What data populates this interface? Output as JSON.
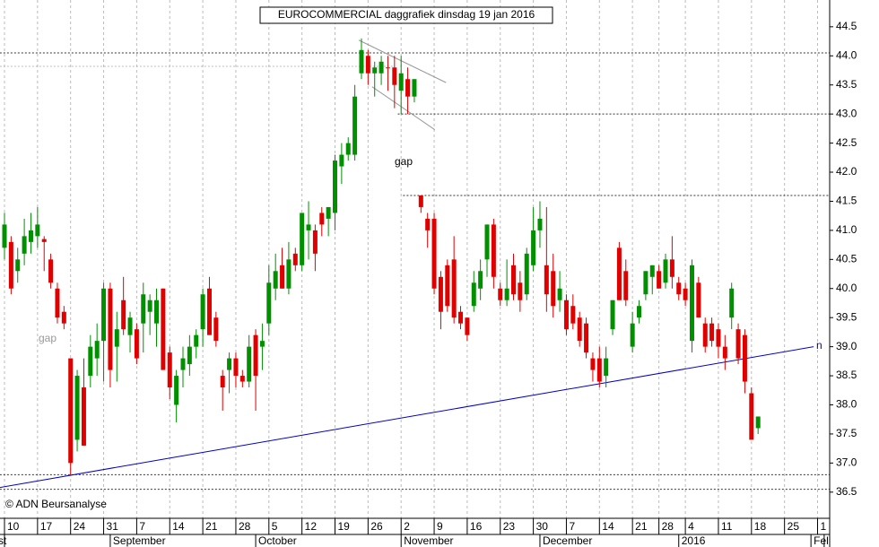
{
  "chart_data": {
    "type": "candlestick",
    "title": "EUROCOMMERCIAL daggrafiek dinsdag 19 jan 2016",
    "source": "© ADN Beursanalyse",
    "annotations": [
      "gap",
      "gap",
      "n"
    ],
    "categories": [
      "10",
      null,
      null,
      null,
      null,
      "17",
      null,
      null,
      null,
      null,
      "24",
      null,
      null,
      null,
      null,
      "31",
      null,
      null,
      null,
      null,
      "7",
      null,
      null,
      null,
      null,
      "14",
      null,
      null,
      null,
      null,
      "21",
      null,
      null,
      null,
      null,
      "28",
      null,
      null,
      null,
      null,
      "5",
      null,
      null,
      null,
      null,
      "12",
      null,
      null,
      null,
      null,
      "19",
      null,
      null,
      null,
      null,
      "26",
      null,
      null,
      null,
      null,
      "2",
      null,
      null,
      null,
      null,
      "9",
      null,
      null,
      null,
      null,
      "16",
      null,
      null,
      null,
      null,
      "23",
      null,
      null,
      null,
      null,
      "30",
      null,
      null,
      null,
      null,
      "7",
      null,
      null,
      null,
      null,
      "14",
      null,
      null,
      null,
      null,
      "21",
      null,
      null,
      null,
      "28",
      null,
      null,
      null,
      "4",
      null,
      null,
      null,
      null,
      "11",
      null,
      null,
      null,
      null,
      "18",
      null,
      null,
      null,
      null,
      "25",
      null,
      null,
      null,
      null,
      "1",
      null
    ],
    "month_labels": [
      "st",
      null,
      null,
      null,
      null,
      null,
      null,
      null,
      null,
      null,
      null,
      null,
      null,
      null,
      null,
      null,
      "September",
      null,
      null,
      null,
      null,
      null,
      null,
      null,
      null,
      null,
      null,
      null,
      null,
      null,
      null,
      null,
      null,
      null,
      null,
      null,
      null,
      null,
      "October",
      null,
      null,
      null,
      null,
      null,
      null,
      null,
      null,
      null,
      null,
      null,
      null,
      null,
      null,
      null,
      null,
      null,
      null,
      null,
      null,
      null,
      "November",
      null,
      null,
      null,
      null,
      null,
      null,
      null,
      null,
      null,
      null,
      null,
      null,
      null,
      null,
      null,
      null,
      null,
      null,
      null,
      null,
      "December",
      null,
      null,
      null,
      null,
      null,
      null,
      null,
      null,
      null,
      null,
      null,
      null,
      null,
      null,
      null,
      null,
      null,
      null,
      null,
      null,
      "2016",
      null,
      null,
      null,
      null,
      null,
      null,
      null,
      null,
      null,
      null,
      null,
      null,
      null,
      null,
      null,
      null,
      null,
      null,
      null,
      "Fel",
      null
    ],
    "open": [
      40.7,
      40.8,
      40.3,
      40.6,
      40.8,
      40.9,
      40.85,
      40.5,
      40.0,
      39.6,
      38.8,
      37.4,
      38.3,
      38.5,
      38.8,
      39.1,
      40.0,
      39.0,
      39.8,
      39.2,
      39.3,
      39.4,
      39.6,
      39.4,
      40.0,
      38.9,
      38.0,
      38.6,
      38.7,
      39.0,
      39.3,
      40.0,
      39.5,
      38.5,
      38.6,
      38.8,
      38.5,
      38.4,
      39.2,
      39.0,
      39.4,
      40.0,
      40.4,
      40.0,
      40.6,
      40.4,
      41.0,
      41.0,
      41.3,
      41.2,
      41.3,
      42.1,
      42.3,
      42.3,
      43.7,
      44.0,
      43.7,
      43.7,
      43.8,
      43.8,
      43.4,
      43.6,
      43.3,
      41.6,
      41.2,
      41.2,
      40.2,
      40.4,
      40.5,
      39.6,
      39.5,
      39.7,
      40.0,
      40.5,
      41.1,
      40.0,
      39.8,
      40.4,
      40.1,
      39.9,
      40.4,
      41.0,
      40.4,
      40.3,
      39.8,
      39.8,
      39.7,
      39.5,
      39.4,
      38.8,
      38.8,
      38.5,
      39.3,
      40.7,
      40.3,
      39.0,
      39.5,
      39.9,
      40.2,
      40.3,
      40.1,
      40.5,
      40.1,
      40.0,
      39.1,
      40.1,
      39.4,
      39.4,
      39.3,
      39.0,
      39.5,
      39.3,
      39.2,
      38.2,
      37.6,
      null,
      null,
      null,
      null,
      null,
      null,
      null,
      null,
      null,
      null
    ],
    "high": [
      41.3,
      40.9,
      40.7,
      41.2,
      41.3,
      41.4,
      40.9,
      40.6,
      40.1,
      39.7,
      38.8,
      38.6,
      38.8,
      39.2,
      39.4,
      40.1,
      40.1,
      39.6,
      40.2,
      39.6,
      39.4,
      40.1,
      39.9,
      40.0,
      40.0,
      39.0,
      38.6,
      39.0,
      39.2,
      39.3,
      40.0,
      40.2,
      39.6,
      38.6,
      38.9,
      38.9,
      38.6,
      39.2,
      39.3,
      39.4,
      40.4,
      40.6,
      40.7,
      40.8,
      40.7,
      41.3,
      41.5,
      41.1,
      41.4,
      41.4,
      42.3,
      42.5,
      42.6,
      43.5,
      44.3,
      44.1,
      43.9,
      44.0,
      44.0,
      44.0,
      44.0,
      43.8,
      43.6,
      41.6,
      41.3,
      41.3,
      40.3,
      40.5,
      40.9,
      39.7,
      39.5,
      40.3,
      40.5,
      41.1,
      41.2,
      40.1,
      40.5,
      40.6,
      40.3,
      40.7,
      41.4,
      41.5,
      41.4,
      40.6,
      40.3,
      39.9,
      39.9,
      39.6,
      39.5,
      38.9,
      39.0,
      39.0,
      39.8,
      40.8,
      40.5,
      39.6,
      39.8,
      40.3,
      40.4,
      40.4,
      40.6,
      40.9,
      40.2,
      40.1,
      40.5,
      40.2,
      39.5,
      39.5,
      39.4,
      39.2,
      40.1,
      39.4,
      39.3,
      38.3,
      37.8,
      null,
      null,
      null,
      null,
      null,
      null,
      null,
      null,
      null,
      null
    ],
    "low": [
      40.5,
      39.9,
      40.1,
      40.4,
      40.6,
      40.7,
      40.3,
      40.0,
      39.4,
      39.3,
      36.8,
      37.2,
      37.3,
      38.3,
      38.5,
      38.4,
      38.3,
      38.4,
      39.2,
      38.9,
      38.7,
      38.9,
      39.2,
      39.0,
      38.6,
      38.1,
      37.7,
      38.3,
      38.5,
      38.8,
      39.0,
      39.2,
      39.0,
      37.9,
      38.2,
      38.3,
      38.3,
      38.3,
      37.9,
      38.6,
      39.2,
      39.8,
      40.0,
      39.9,
      40.3,
      40.3,
      40.5,
      40.3,
      40.9,
      40.9,
      41.0,
      41.8,
      42.2,
      42.2,
      43.6,
      43.5,
      43.3,
      43.5,
      43.4,
      43.1,
      43.0,
      43.0,
      43.2,
      41.3,
      40.7,
      39.9,
      39.3,
      39.6,
      39.4,
      39.3,
      39.1,
      39.6,
      39.8,
      40.2,
      40.0,
      39.7,
      39.7,
      39.8,
      39.6,
      39.8,
      40.3,
      40.7,
      39.6,
      39.5,
      39.6,
      39.2,
      39.3,
      39.0,
      38.8,
      38.4,
      38.3,
      38.3,
      39.2,
      39.8,
      39.7,
      38.9,
      39.4,
      39.8,
      39.9,
      40.0,
      40.0,
      40.0,
      39.8,
      39.7,
      38.9,
      39.5,
      38.9,
      39.0,
      38.8,
      38.6,
      39.3,
      38.7,
      38.2,
      37.4,
      37.5,
      null,
      null,
      null,
      null,
      null,
      null,
      null,
      null,
      null,
      null
    ],
    "close": [
      41.1,
      40.0,
      40.5,
      40.9,
      41.0,
      41.1,
      40.8,
      40.1,
      39.5,
      39.4,
      37.0,
      38.5,
      37.3,
      39.0,
      39.1,
      40.0,
      38.6,
      39.3,
      39.3,
      39.5,
      38.8,
      39.9,
      39.8,
      39.8,
      38.6,
      38.3,
      38.5,
      38.8,
      39.0,
      39.2,
      39.9,
      39.2,
      39.1,
      38.3,
      38.8,
      38.5,
      38.4,
      39.0,
      38.5,
      39.1,
      40.1,
      40.3,
      40.0,
      40.5,
      40.4,
      41.3,
      41.1,
      40.6,
      41.1,
      41.4,
      42.2,
      42.3,
      42.5,
      43.3,
      44.1,
      43.7,
      43.8,
      43.9,
      43.8,
      43.5,
      43.7,
      43.3,
      43.6,
      41.4,
      41.0,
      40.0,
      39.6,
      39.7,
      39.5,
      39.4,
      39.2,
      40.1,
      40.3,
      41.1,
      40.2,
      39.8,
      40.0,
      39.9,
      39.8,
      40.6,
      41.0,
      41.2,
      39.9,
      39.7,
      40.0,
      39.3,
      39.4,
      39.1,
      38.9,
      38.6,
      38.4,
      38.8,
      39.8,
      39.8,
      39.8,
      39.4,
      39.7,
      40.3,
      40.4,
      40.0,
      40.5,
      40.2,
      39.9,
      39.8,
      40.4,
      39.5,
      39.0,
      39.1,
      39.0,
      38.8,
      40.0,
      38.8,
      38.4,
      37.4,
      37.8,
      null,
      null,
      null,
      null,
      null,
      null,
      null,
      null,
      null,
      null
    ],
    "up_color": "#009000",
    "down_color": "#e00000",
    "ylim": [
      36.05,
      44.96
    ],
    "yticks": [
      36.5,
      {
        "value": 37,
        "label": "37.0"
      },
      37.5,
      {
        "value": 38,
        "label": "38.0"
      },
      38.5,
      {
        "value": 39,
        "label": "39.0"
      },
      39.5,
      {
        "value": 40,
        "label": "40.0"
      },
      40.5,
      {
        "value": 41,
        "label": "41.0"
      },
      41.5,
      {
        "value": 42,
        "label": "42.0"
      },
      42.5,
      {
        "value": 43,
        "label": "43.0"
      },
      43.5,
      {
        "value": 44,
        "label": "44.0"
      },
      44.5
    ],
    "hlines": [
      {
        "value": 44.05,
        "from": -0.7,
        "to": 124.8,
        "color": "#333333"
      },
      {
        "value": 43.82,
        "from": -0.7,
        "to": 59,
        "color": "#bbbbbb"
      },
      {
        "value": 43.0,
        "from": 59.5,
        "to": 124.8,
        "color": "#333333"
      },
      {
        "value": 41.6,
        "from": 60.3,
        "to": 124.8,
        "color": "#333333"
      },
      {
        "value": 36.8,
        "from": -0.7,
        "to": 124.8,
        "color": "#333333"
      },
      {
        "value": 36.55,
        "from": -0.7,
        "to": 124.8,
        "color": "#333333"
      }
    ],
    "trendlines": [
      {
        "x": [
          -0.7,
          122.4
        ],
        "y": [
          36.58,
          39.0
        ],
        "color": "#0000cc"
      },
      {
        "x": [
          53.6,
          66.8
        ],
        "y": [
          44.27,
          43.54
        ],
        "color": "#999999"
      },
      {
        "x": [
          55.6,
          65.1
        ],
        "y": [
          43.47,
          42.73
        ],
        "color": "#999999"
      }
    ]
  }
}
